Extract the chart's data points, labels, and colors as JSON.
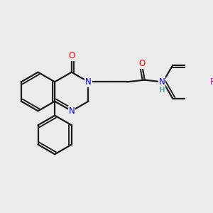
{
  "bg_color": "#ebebeb",
  "bond_color": "#1a1a1a",
  "bond_width": 1.6,
  "atom_colors": {
    "O": "#ff0000",
    "N": "#0000cc",
    "F": "#cc00aa",
    "H": "#008080",
    "C": "#1a1a1a"
  },
  "font_size_atom": 8.5
}
